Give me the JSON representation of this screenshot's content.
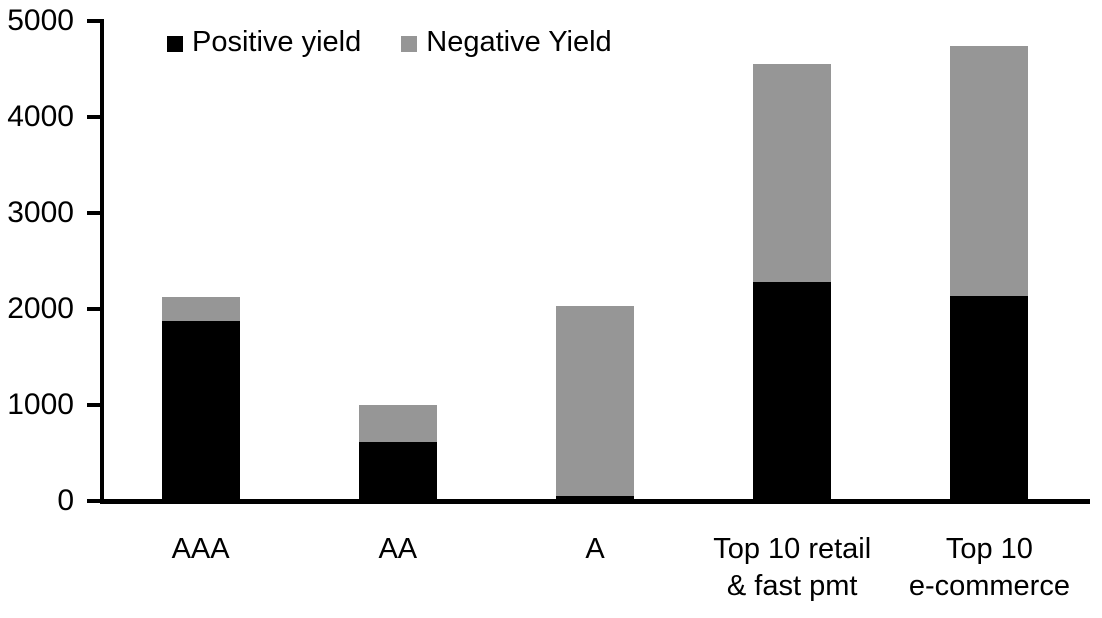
{
  "chart_data": {
    "type": "bar",
    "stacked": true,
    "title": "",
    "xlabel": "",
    "ylabel": "",
    "categories": [
      [
        "AAA"
      ],
      [
        "AA"
      ],
      [
        "A"
      ],
      [
        "Top 10 retail",
        "& fast pmt"
      ],
      [
        "Top 10",
        "e-commerce"
      ]
    ],
    "series": [
      {
        "name": "Positive yield",
        "color": "#000000",
        "values": [
          1870,
          610,
          50,
          2280,
          2140
        ]
      },
      {
        "name": "Negative Yield",
        "color": "#969696",
        "values": [
          250,
          390,
          1980,
          2270,
          2600
        ]
      }
    ],
    "totals": [
      2120,
      1000,
      2030,
      4550,
      4740
    ],
    "ylim": [
      0,
      5000
    ],
    "yticks": [
      0,
      1000,
      2000,
      3000,
      4000,
      5000
    ],
    "legend_position": "top",
    "grid": false,
    "axis_color": "#000000",
    "background_color": "#ffffff"
  }
}
